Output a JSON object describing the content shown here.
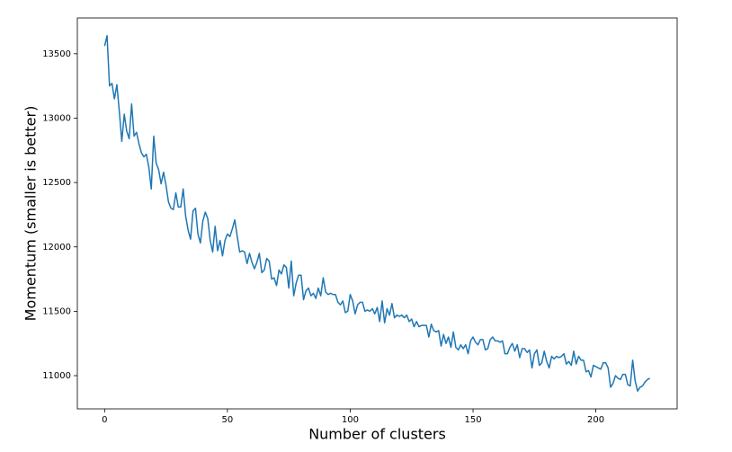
{
  "chart_data": {
    "type": "line",
    "xlabel": "Number of clusters",
    "ylabel": "Momentum (smaller is better)",
    "x": [
      0,
      1,
      2,
      3,
      4,
      5,
      6,
      7,
      8,
      9,
      10,
      11,
      12,
      13,
      14,
      15,
      16,
      17,
      18,
      19,
      20,
      21,
      22,
      23,
      24,
      25,
      26,
      27,
      28,
      29,
      30,
      31,
      32,
      33,
      34,
      35,
      36,
      37,
      38,
      39,
      40,
      41,
      42,
      43,
      44,
      45,
      46,
      47,
      48,
      49,
      50,
      51,
      52,
      53,
      54,
      55,
      56,
      57,
      58,
      59,
      60,
      61,
      62,
      63,
      64,
      65,
      66,
      67,
      68,
      69,
      70,
      71,
      72,
      73,
      74,
      75,
      76,
      77,
      78,
      79,
      80,
      81,
      82,
      83,
      84,
      85,
      86,
      87,
      88,
      89,
      90,
      91,
      92,
      93,
      94,
      95,
      96,
      97,
      98,
      99,
      100,
      101,
      102,
      103,
      104,
      105,
      106,
      107,
      108,
      109,
      110,
      111,
      112,
      113,
      114,
      115,
      116,
      117,
      118,
      119,
      120,
      121,
      122,
      123,
      124,
      125,
      126,
      127,
      128,
      129,
      130,
      131,
      132,
      133,
      134,
      135,
      136,
      137,
      138,
      139,
      140,
      141,
      142,
      143,
      144,
      145,
      146,
      147,
      148,
      149,
      150,
      151,
      152,
      153,
      154,
      155,
      156,
      157,
      158,
      159,
      160,
      161,
      162,
      163,
      164,
      165,
      166,
      167,
      168,
      169,
      170,
      171,
      172,
      173,
      174,
      175,
      176,
      177,
      178,
      179,
      180,
      181,
      182,
      183,
      184,
      185,
      186,
      187,
      188,
      189,
      190,
      191,
      192,
      193,
      194,
      195,
      196,
      197,
      198,
      199,
      200,
      201,
      202,
      203,
      204,
      205,
      206,
      207,
      208,
      209,
      210,
      211,
      212,
      213,
      214,
      215,
      216,
      217,
      218,
      219,
      220,
      221,
      222
    ],
    "values": [
      13560,
      13640,
      13250,
      13270,
      13150,
      13260,
      13050,
      12820,
      13030,
      12900,
      12840,
      13110,
      12860,
      12890,
      12800,
      12730,
      12700,
      12720,
      12620,
      12450,
      12860,
      12650,
      12600,
      12490,
      12580,
      12480,
      12350,
      12300,
      12290,
      12420,
      12310,
      12310,
      12450,
      12240,
      12130,
      12060,
      12280,
      12300,
      12100,
      12030,
      12200,
      12270,
      12220,
      12050,
      11960,
      12160,
      11970,
      12050,
      11930,
      12050,
      12100,
      12080,
      12140,
      12210,
      12080,
      11960,
      11970,
      11960,
      11870,
      11950,
      11880,
      11830,
      11880,
      11950,
      11800,
      11820,
      11910,
      11890,
      11750,
      11760,
      11700,
      11820,
      11790,
      11860,
      11840,
      11680,
      11890,
      11620,
      11720,
      11780,
      11780,
      11590,
      11660,
      11680,
      11620,
      11640,
      11600,
      11680,
      11620,
      11760,
      11650,
      11630,
      11640,
      11630,
      11630,
      11570,
      11550,
      11580,
      11490,
      11500,
      11630,
      11580,
      11480,
      11550,
      11570,
      11570,
      11500,
      11510,
      11500,
      11520,
      11480,
      11530,
      11420,
      11580,
      11410,
      11520,
      11470,
      11560,
      11450,
      11470,
      11460,
      11470,
      11450,
      11470,
      11420,
      11440,
      11380,
      11420,
      11380,
      11390,
      11390,
      11390,
      11300,
      11400,
      11350,
      11340,
      11350,
      11230,
      11320,
      11250,
      11300,
      11220,
      11340,
      11220,
      11200,
      11240,
      11210,
      11240,
      11170,
      11270,
      11300,
      11260,
      11240,
      11280,
      11280,
      11200,
      11210,
      11280,
      11300,
      11270,
      11270,
      11260,
      11270,
      11170,
      11170,
      11220,
      11250,
      11190,
      11240,
      11140,
      11210,
      11210,
      11180,
      11200,
      11060,
      11170,
      11200,
      11080,
      11100,
      11190,
      11110,
      11060,
      11150,
      11130,
      11150,
      11140,
      11150,
      11170,
      11090,
      11110,
      11080,
      11190,
      11090,
      11150,
      11120,
      11120,
      11030,
      11040,
      10990,
      11080,
      11070,
      11060,
      11050,
      11100,
      11100,
      11060,
      10910,
      10940,
      11000,
      10980,
      10970,
      11010,
      11010,
      10930,
      10920,
      11120,
      10960,
      10880,
      10910,
      10920,
      10950,
      10970,
      10980
    ],
    "color": "#1f77b4",
    "xlim": [
      -11.1,
      233.1
    ],
    "xticks": [
      0,
      50,
      100,
      150,
      200
    ],
    "ylim": [
      10742,
      13778
    ],
    "yticks": [
      11000,
      11500,
      12000,
      12500,
      13000,
      13500
    ],
    "grid": false
  }
}
